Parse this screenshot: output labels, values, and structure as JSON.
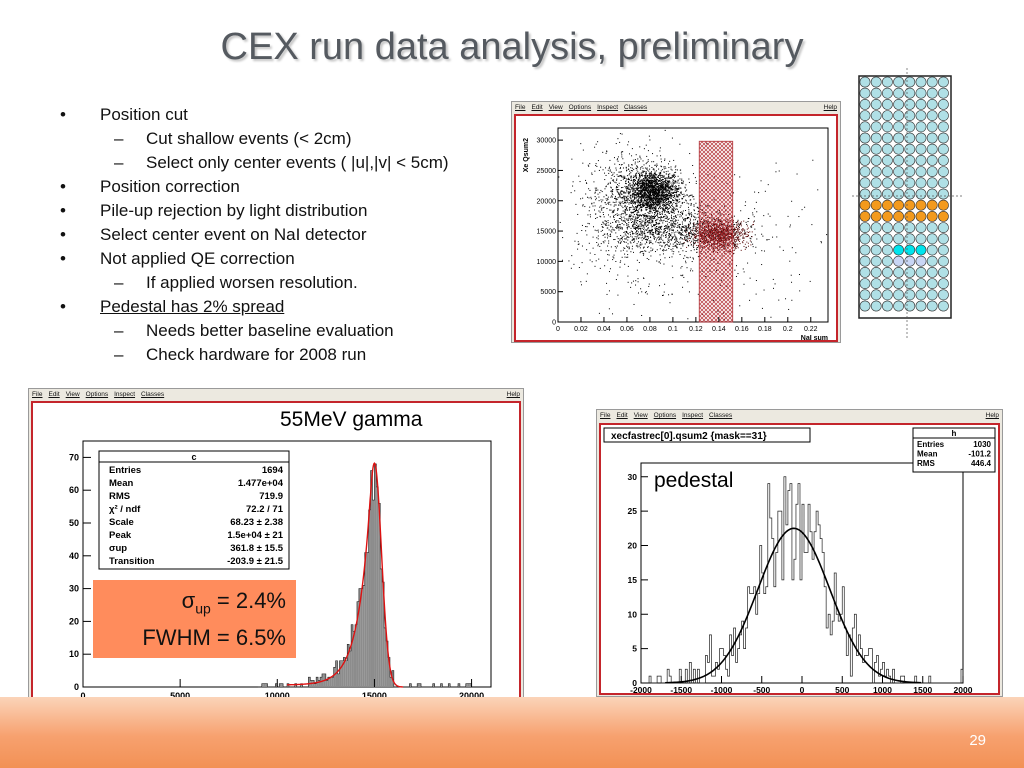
{
  "slide": {
    "title": "CEX run data analysis, preliminary",
    "page_number": "29"
  },
  "bullets": [
    {
      "level": 1,
      "text": "Position cut"
    },
    {
      "level": 2,
      "text": "Cut shallow events (< 2cm)"
    },
    {
      "level": 2,
      "text": "Select only center events ( |u|,|v| < 5cm)"
    },
    {
      "level": 1,
      "text": "Position correction"
    },
    {
      "level": 1,
      "text": "Pile-up rejection by light distribution"
    },
    {
      "level": 1,
      "text": "Select center event on NaI detector"
    },
    {
      "level": 1,
      "text": "Not applied QE correction"
    },
    {
      "level": 2,
      "text": "If applied worsen resolution."
    },
    {
      "level": 1,
      "text": "Pedestal has 2% spread",
      "underline": true
    },
    {
      "level": 2,
      "text": "Needs better baseline evaluation"
    },
    {
      "level": 2,
      "text": "Check hardware for 2008 run"
    }
  ],
  "menu": {
    "file": "File",
    "edit": "Edit",
    "view": "View",
    "options": "Options",
    "inspect": "Inspect",
    "classes": "Classes",
    "help": "Help"
  },
  "scatter_plot": {
    "ylabel": "Xe Qsum2",
    "xlabel": "NaI sum",
    "xticks": [
      "0",
      "0.02",
      "0.04",
      "0.06",
      "0.08",
      "0.1",
      "0.12",
      "0.14",
      "0.16",
      "0.18",
      "0.2",
      "0.22"
    ],
    "yticks": [
      "0",
      "5000",
      "10000",
      "15000",
      "20000",
      "25000",
      "30000"
    ]
  },
  "gamma_hist": {
    "label": "55MeV gamma",
    "xticks": [
      "0",
      "5000",
      "10000",
      "15000",
      "20000"
    ],
    "yticks": [
      "0",
      "10",
      "20",
      "30",
      "40",
      "50",
      "60",
      "70"
    ],
    "stats_title": "c",
    "stats": [
      {
        "name": "Entries",
        "value": "1694"
      },
      {
        "name": "Mean",
        "value": "1.477e+04"
      },
      {
        "name": "RMS",
        "value": "719.9"
      },
      {
        "name": "χ² / ndf",
        "value": "72.2 / 71"
      },
      {
        "name": "Scale",
        "value": "68.23 ± 2.38"
      },
      {
        "name": "Peak",
        "value": "1.5e+04 ± 21"
      },
      {
        "name": "σup",
        "value": "361.8 ± 15.5"
      },
      {
        "name": "Transition",
        "value": "-203.9 ± 21.5"
      }
    ],
    "sigma_line_symbol": "σ",
    "sigma_line_sub": "up",
    "sigma_line_value": " = 2.4%",
    "fwhm_line": "FWHM = 6.5%"
  },
  "pedestal_hist": {
    "title": "xecfastrec[0].qsum2 {mask==31}",
    "label": "pedestal",
    "xticks": [
      "-2000",
      "-1500",
      "-1000",
      "-500",
      "0",
      "500",
      "1000",
      "1500",
      "2000"
    ],
    "yticks": [
      "0",
      "5",
      "10",
      "15",
      "20",
      "25",
      "30"
    ],
    "stats_title": "h",
    "stats": [
      {
        "name": "Entries",
        "value": "1030"
      },
      {
        "name": "Mean",
        "value": "-101.2"
      },
      {
        "name": "RMS",
        "value": "446.4"
      }
    ]
  },
  "colors": {
    "frame": "#c4252b",
    "accent_orange": "#ff8c5c",
    "band": "#f29155",
    "pmt": "#b0e0e6",
    "pmt_hit_orange": "#f39a1d",
    "pmt_hit_cyan": "#00e5ee"
  },
  "chart_data": [
    {
      "type": "histogram",
      "title": "",
      "xlabel": "",
      "ylabel": "",
      "xlim": [
        0,
        21000
      ],
      "ylim": [
        0,
        75
      ],
      "fit": {
        "scale": 68.23,
        "peak": 15000,
        "sigma_up": 361.8,
        "transition": -203.9
      },
      "entries": 1694,
      "mean": 14770,
      "rms": 719.9
    },
    {
      "type": "histogram",
      "title": "xecfastrec[0].qsum2 {mask==31}",
      "xlabel": "",
      "ylabel": "",
      "xlim": [
        -2000,
        2000
      ],
      "ylim": [
        0,
        32
      ],
      "fit": {
        "amplitude": 22.5,
        "mean": -101.2,
        "sigma": 446.4
      },
      "entries": 1030,
      "mean": -101.2,
      "rms": 446.4
    },
    {
      "type": "scatter",
      "title": "",
      "xlabel": "NaI sum",
      "ylabel": "Xe Qsum2",
      "xlim": [
        0,
        0.235
      ],
      "ylim": [
        0,
        32000
      ],
      "selection_band": [
        0.123,
        0.152
      ]
    }
  ]
}
